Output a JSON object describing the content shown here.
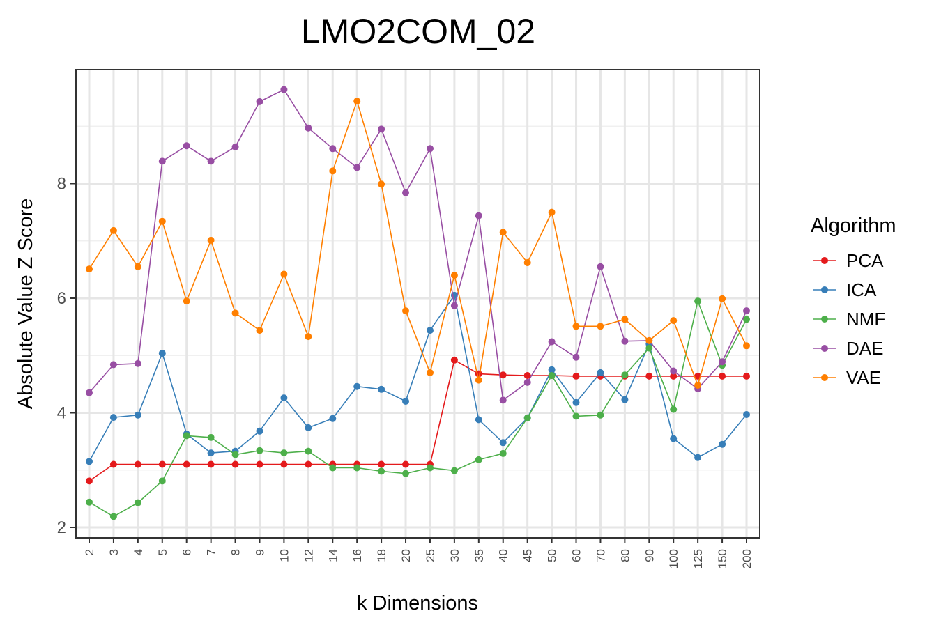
{
  "chart_data": {
    "type": "line",
    "title": "LMO2COM_02",
    "xlabel": "k Dimensions",
    "ylabel": "Absolute Value Z Score",
    "categories": [
      "2",
      "3",
      "4",
      "5",
      "6",
      "7",
      "8",
      "9",
      "10",
      "12",
      "14",
      "16",
      "18",
      "20",
      "25",
      "30",
      "35",
      "40",
      "45",
      "50",
      "60",
      "70",
      "80",
      "90",
      "100",
      "125",
      "150",
      "200"
    ],
    "yticks": [
      2,
      4,
      6,
      8
    ],
    "ylim": [
      1.8,
      9.9
    ],
    "grid": true,
    "legend_title": "Algorithm",
    "legend_position": "right",
    "series": [
      {
        "name": "PCA",
        "color": "#e41a1c",
        "values": [
          2.81,
          3.1,
          3.1,
          3.1,
          3.1,
          3.1,
          3.1,
          3.1,
          3.1,
          3.1,
          3.1,
          3.1,
          3.1,
          3.1,
          3.1,
          4.92,
          4.68,
          4.66,
          4.65,
          4.65,
          4.64,
          4.64,
          4.64,
          4.64,
          4.64,
          4.64,
          4.64,
          4.64
        ]
      },
      {
        "name": "ICA",
        "color": "#377eb8",
        "values": [
          3.15,
          3.92,
          3.96,
          5.04,
          3.63,
          3.3,
          3.33,
          3.68,
          4.26,
          3.74,
          3.9,
          4.46,
          4.41,
          4.2,
          5.44,
          6.05,
          3.88,
          3.48,
          3.91,
          4.75,
          4.18,
          4.7,
          4.23,
          5.2,
          3.55,
          3.22,
          3.45,
          3.97
        ]
      },
      {
        "name": "NMF",
        "color": "#4daf4a",
        "values": [
          2.44,
          2.19,
          2.43,
          2.81,
          3.6,
          3.57,
          3.27,
          3.34,
          3.3,
          3.33,
          3.04,
          3.04,
          2.98,
          2.94,
          3.04,
          2.99,
          3.18,
          3.29,
          3.91,
          4.65,
          3.94,
          3.96,
          4.66,
          5.13,
          4.06,
          5.95,
          4.83,
          5.63
        ]
      },
      {
        "name": "DAE",
        "color": "#984ea3",
        "values": [
          4.35,
          4.84,
          4.86,
          8.39,
          8.66,
          8.39,
          8.64,
          9.43,
          9.64,
          8.97,
          8.61,
          8.28,
          8.95,
          7.84,
          8.61,
          5.87,
          7.44,
          4.22,
          4.53,
          5.24,
          4.97,
          6.55,
          5.25,
          5.26,
          4.73,
          4.42,
          4.89,
          5.78
        ]
      },
      {
        "name": "VAE",
        "color": "#ff7f00",
        "values": [
          6.51,
          7.18,
          6.55,
          7.34,
          5.95,
          7.01,
          5.74,
          5.44,
          6.42,
          5.33,
          8.22,
          9.44,
          7.99,
          5.78,
          4.7,
          6.4,
          4.57,
          7.15,
          6.62,
          7.5,
          5.51,
          5.51,
          5.63,
          5.26,
          5.61,
          4.48,
          5.99,
          5.17
        ]
      }
    ]
  }
}
